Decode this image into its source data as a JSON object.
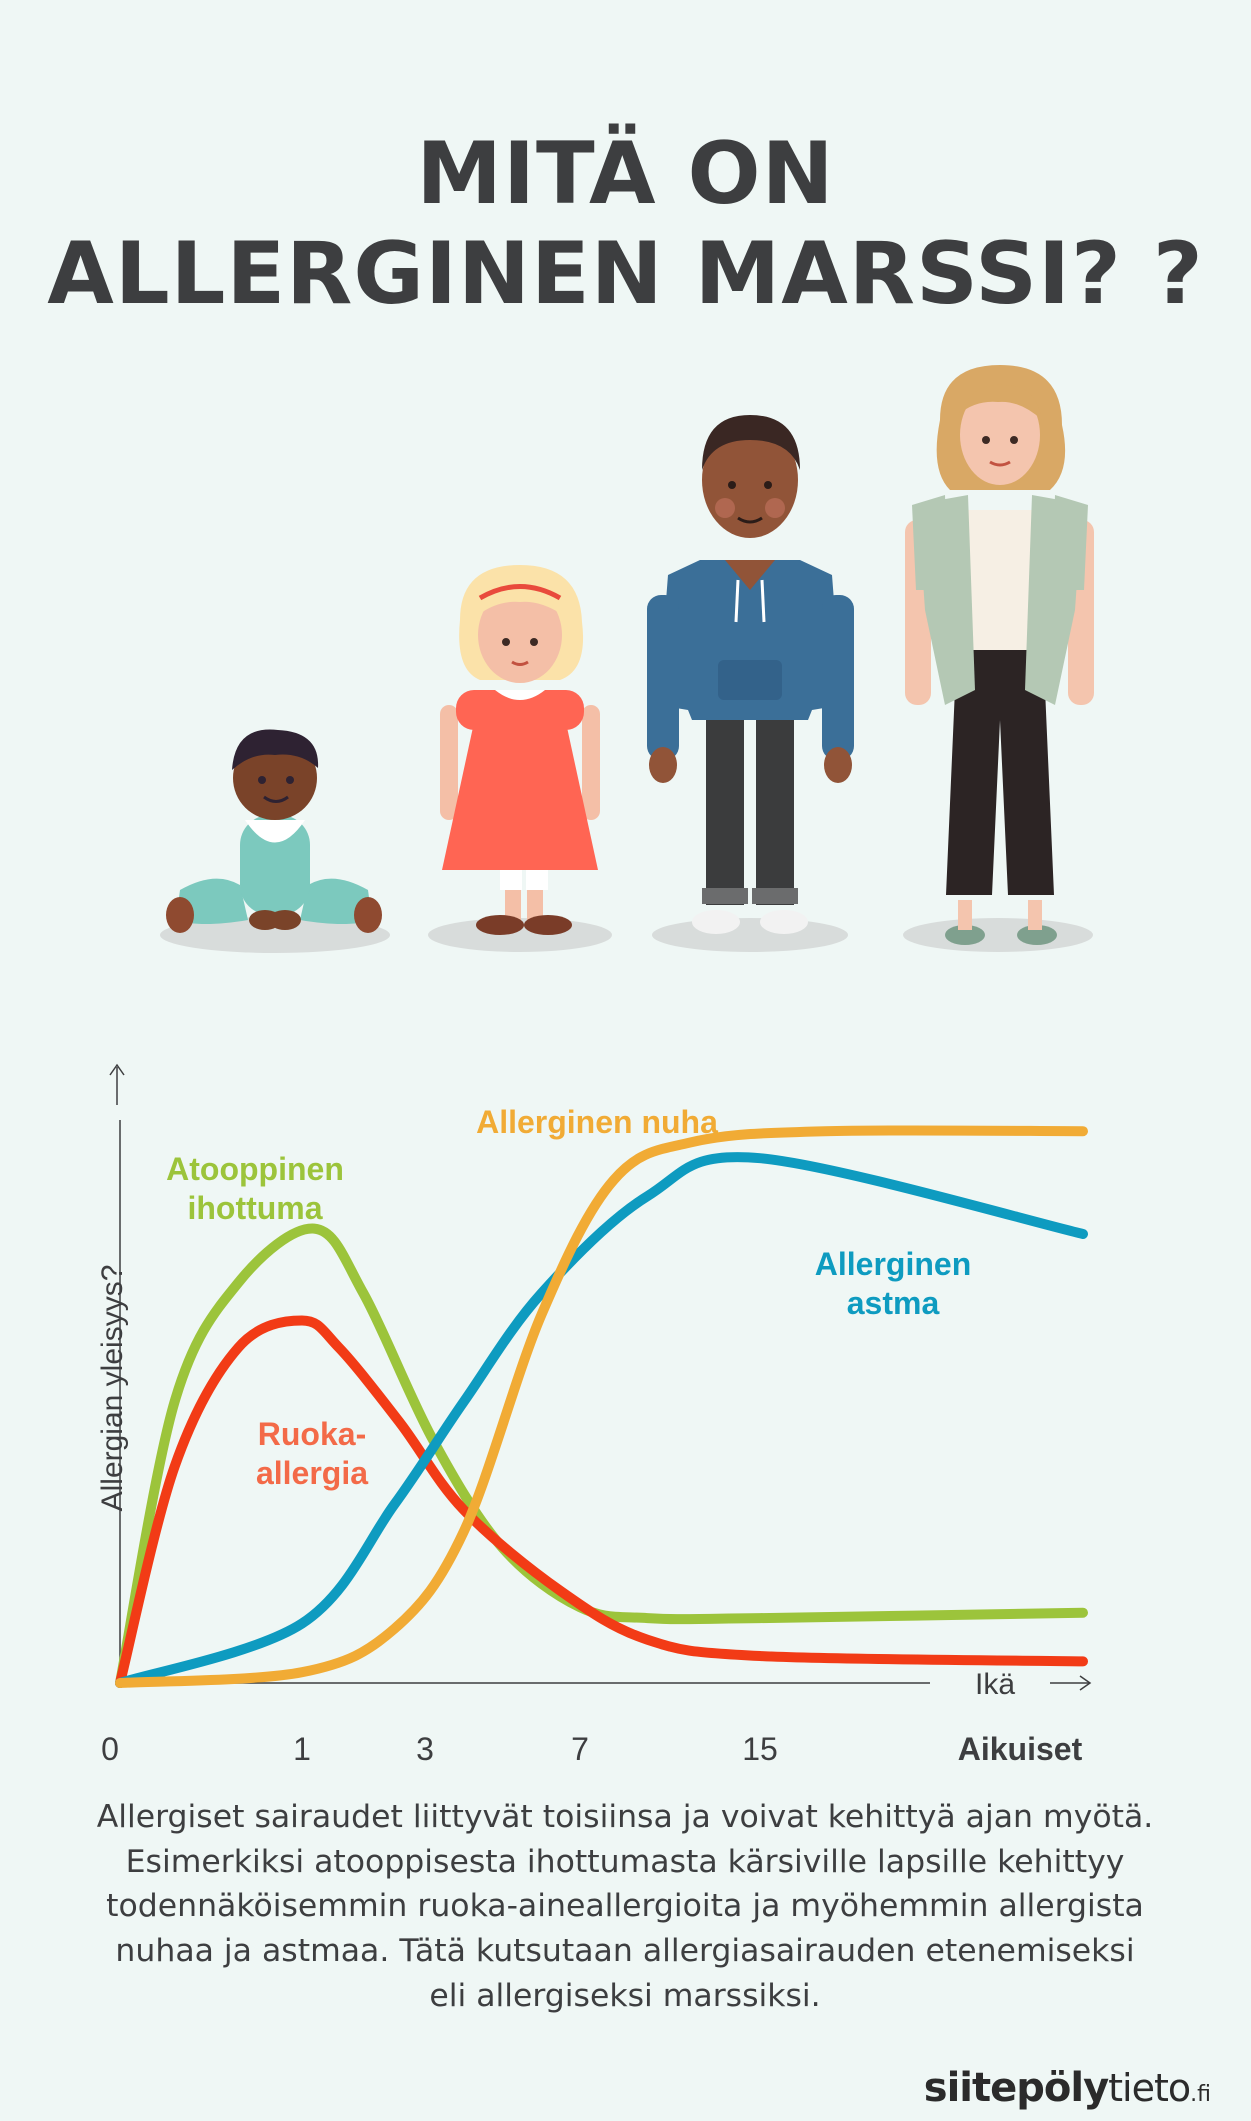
{
  "title": {
    "line1": "MITÄ ON",
    "line2": "ALLERGINEN MARSSI? ?"
  },
  "chart_data": {
    "type": "line",
    "ylabel": "Allergian yleisyys?",
    "xlabel": "Ikä",
    "categories": [
      "0",
      "1",
      "3",
      "7",
      "15",
      "Aikuiset"
    ],
    "series": [
      {
        "name": "Atooppinen ihottuma",
        "name_lines": [
          "Atooppinen",
          "ihottuma"
        ],
        "color": "#9cc43b",
        "points": [
          [
            0,
            0
          ],
          [
            0.3,
            0.52
          ],
          [
            0.65,
            0.74
          ],
          [
            1.2,
            0.84
          ],
          [
            2.0,
            0.72
          ],
          [
            3.2,
            0.45
          ],
          [
            5.0,
            0.25
          ],
          [
            7.0,
            0.14
          ],
          [
            10,
            0.12
          ],
          [
            15,
            0.12
          ],
          [
            20,
            0.13
          ]
        ]
      },
      {
        "name": "Ruoka-allergia",
        "name_lines": [
          "Ruoka-",
          "allergia"
        ],
        "color": "#f23b16",
        "points": [
          [
            0,
            0
          ],
          [
            0.3,
            0.4
          ],
          [
            0.65,
            0.62
          ],
          [
            1.0,
            0.67
          ],
          [
            1.6,
            0.62
          ],
          [
            2.6,
            0.48
          ],
          [
            4.0,
            0.32
          ],
          [
            6.5,
            0.17
          ],
          [
            10,
            0.08
          ],
          [
            15,
            0.05
          ],
          [
            20,
            0.04
          ]
        ]
      },
      {
        "name": "Allerginen astma",
        "name_lines": [
          "Allerginen",
          "astma"
        ],
        "color": "#0e9bc0",
        "points": [
          [
            0,
            0
          ],
          [
            1.0,
            0.11
          ],
          [
            2.5,
            0.33
          ],
          [
            4.0,
            0.52
          ],
          [
            6.0,
            0.72
          ],
          [
            10,
            0.9
          ],
          [
            15,
            0.97
          ],
          [
            20,
            0.83
          ]
        ]
      },
      {
        "name": "Allerginen nuha",
        "name_lines": [
          "Allerginen nuha"
        ],
        "color": "#f1ab35",
        "points": [
          [
            0,
            0
          ],
          [
            1.0,
            0.02
          ],
          [
            2.5,
            0.1
          ],
          [
            4.0,
            0.28
          ],
          [
            6.0,
            0.68
          ],
          [
            8.5,
            0.93
          ],
          [
            12,
            1.0
          ],
          [
            16,
            1.02
          ],
          [
            20,
            1.02
          ]
        ]
      }
    ]
  },
  "description": "Allergiset sairaudet liittyvät toisiinsa ja voivat kehittyä ajan myötä. Esimerkiksi atooppisesta ihottumasta kärsiville lapsille kehittyy todennäköisemmin ruoka-aineallergioita ja myöhemmin allergista nuhaa ja astmaa. Tätä kutsutaan allergiasairauden etenemiseksi eli allergiseksi marssiksi.",
  "logo": {
    "part1": "siitepöly",
    "part2": "tieto",
    "part3": ".fi"
  },
  "people": [
    {
      "name": "baby-figure",
      "skin": "#7a4329",
      "hair": "#2e2232",
      "top": "#7cc9be"
    },
    {
      "name": "toddler-figure",
      "skin": "#f4bfa7",
      "hair": "#fbe2a9",
      "top": "#ff6553"
    },
    {
      "name": "teen-figure",
      "skin": "#915438",
      "hair": "#3a2723",
      "top": "#3b6f98"
    },
    {
      "name": "adult-figure",
      "skin": "#f4c5ae",
      "hair": "#d9a865",
      "top": "#b4c8b4"
    }
  ]
}
